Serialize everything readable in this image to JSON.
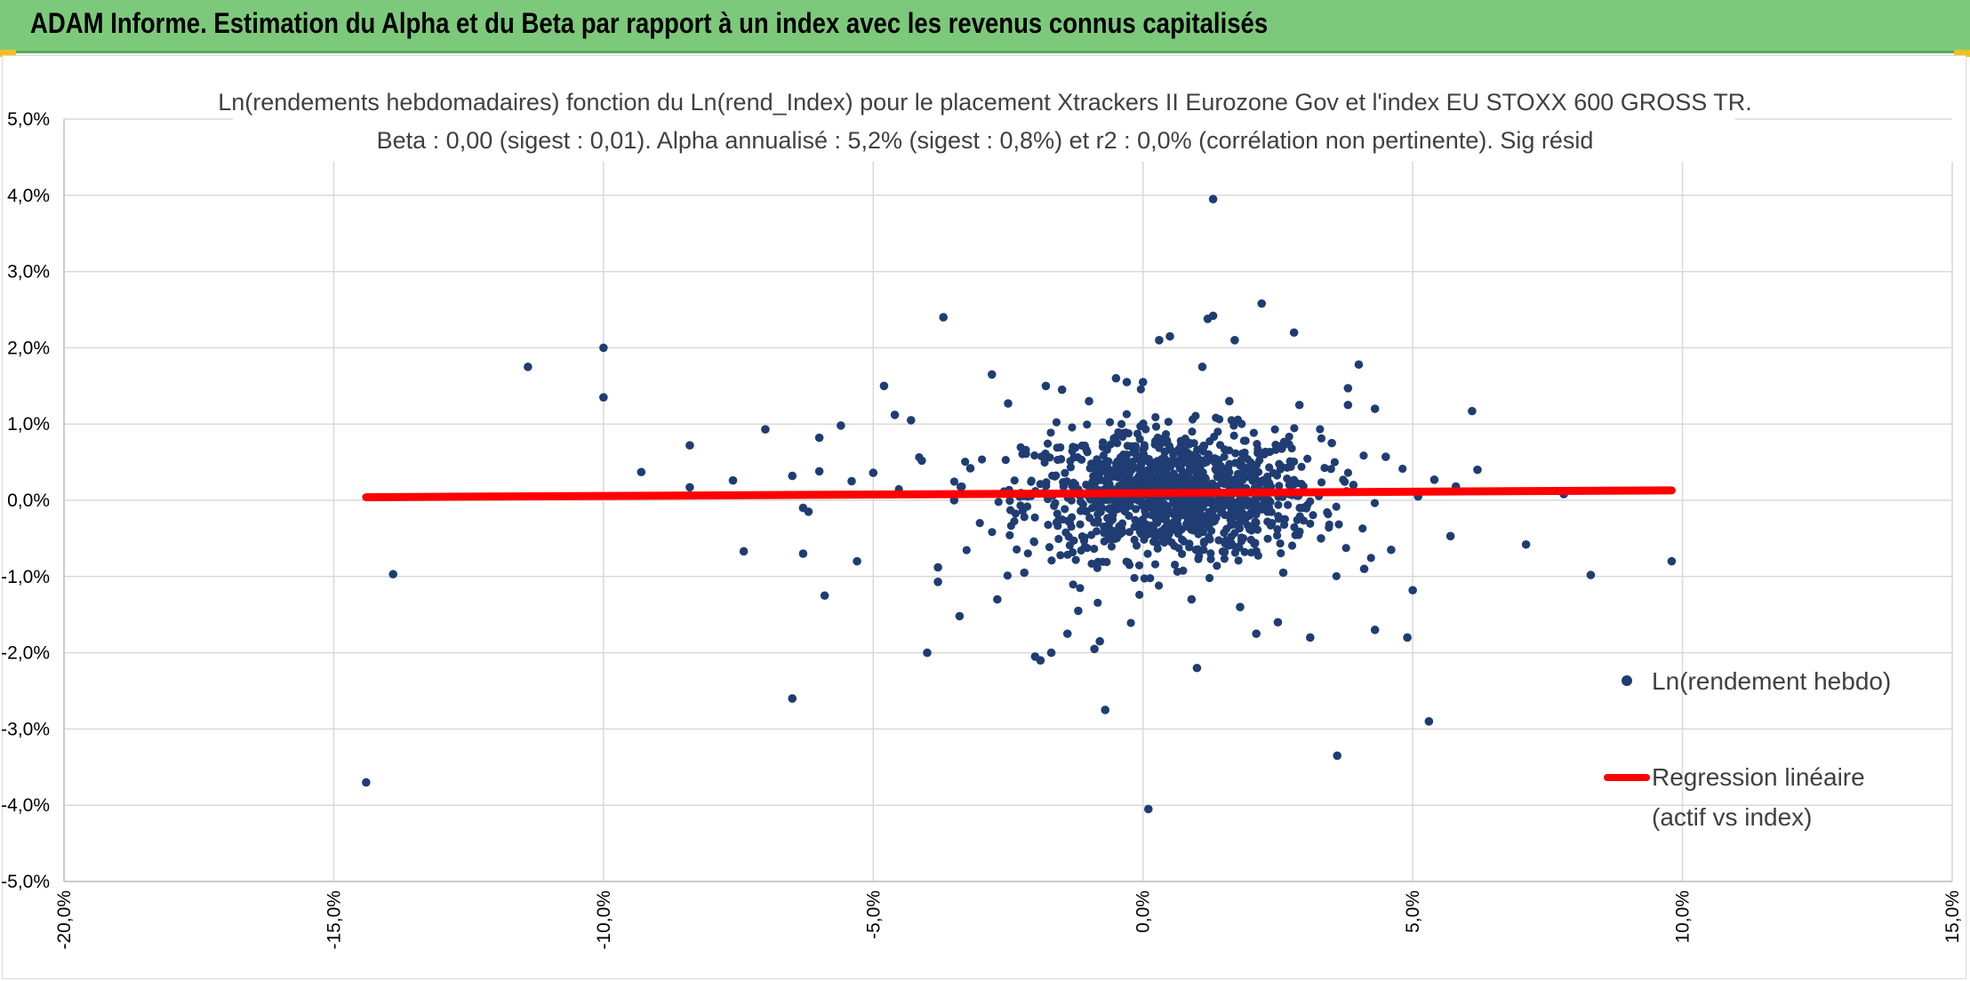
{
  "banner": {
    "title": "ADAM Informe. Estimation du Alpha et du Beta par rapport à un index avec les revenus connus capitalisés"
  },
  "colors": {
    "banner": "#7dc97b",
    "points": "#1f3d73",
    "regression": "#ff0000",
    "grid": "#d9d9d9",
    "title_text": "#404040"
  },
  "chart_data": {
    "type": "scatter",
    "title_lines": [
      "Ln(rendements hebdomadaires) fonction du Ln(rend_Index) pour le placement Xtrackers II Eurozone Gov et l'index EU STOXX 600 GROSS TR.",
      "Beta : 0,00 (sigest : 0,01). Alpha annualisé : 5,2% (sigest : 0,8%) et r2 : 0,0% (corrélation non pertinente). Sig résid"
    ],
    "xlim": [
      -20,
      15
    ],
    "ylim": [
      -5,
      5
    ],
    "x_ticks": [
      -20,
      -15,
      -10,
      -5,
      0,
      5,
      10,
      15
    ],
    "x_tick_labels": [
      "-20,0%",
      "-15,0%",
      "-10,0%",
      "-5,0%",
      "0,0%",
      "5,0%",
      "10,0%",
      "15,0%"
    ],
    "y_ticks": [
      5,
      4,
      3,
      2,
      1,
      0,
      -1,
      -2,
      -3,
      -4,
      -5
    ],
    "y_tick_labels": [
      "5,0%",
      "4,0%",
      "3,0%",
      "2,0%",
      "1,0%",
      "0,0%",
      "-1,0%",
      "-2,0%",
      "-3,0%",
      "-4,0%",
      "-5,0%"
    ],
    "grid": true,
    "legend_position": "right",
    "series": [
      {
        "name": "Ln(rendement hebdo)",
        "kind": "scatter",
        "cluster_note": "Dense cloud of several hundred weekly points roughly centred on (0.5%, 0.1%); outliers listed in points",
        "points": [
          [
            -14.4,
            -3.7
          ],
          [
            -13.9,
            -0.97
          ],
          [
            -11.4,
            1.75
          ],
          [
            -10.0,
            2.0
          ],
          [
            -10.0,
            1.35
          ],
          [
            -9.3,
            0.37
          ],
          [
            -8.4,
            0.72
          ],
          [
            -8.4,
            0.17
          ],
          [
            -7.6,
            0.26
          ],
          [
            -7.4,
            -0.67
          ],
          [
            -7.0,
            0.93
          ],
          [
            -6.5,
            0.32
          ],
          [
            -6.5,
            -2.6
          ],
          [
            -6.3,
            -0.1
          ],
          [
            -6.3,
            -0.7
          ],
          [
            -6.2,
            -0.15
          ],
          [
            -6.0,
            0.82
          ],
          [
            -6.0,
            0.38
          ],
          [
            -5.9,
            -1.25
          ],
          [
            -5.6,
            0.98
          ],
          [
            -5.4,
            0.25
          ],
          [
            -5.3,
            -0.8
          ],
          [
            -5.0,
            0.36
          ],
          [
            -4.8,
            1.5
          ],
          [
            -4.6,
            1.12
          ],
          [
            -4.3,
            1.05
          ],
          [
            -4.1,
            0.52
          ],
          [
            -4.0,
            -2.0
          ],
          [
            -3.8,
            -0.88
          ],
          [
            -3.8,
            -1.07
          ],
          [
            -3.7,
            2.4
          ],
          [
            -3.5,
            0.0
          ],
          [
            -3.4,
            -1.52
          ],
          [
            -3.2,
            0.42
          ],
          [
            -2.8,
            1.65
          ],
          [
            -2.7,
            -1.3
          ],
          [
            -2.5,
            1.27
          ],
          [
            -2.2,
            -0.95
          ],
          [
            -2.0,
            -2.05
          ],
          [
            -1.9,
            -2.1
          ],
          [
            -1.8,
            1.5
          ],
          [
            -1.7,
            -2.0
          ],
          [
            -1.5,
            1.45
          ],
          [
            -1.4,
            -1.75
          ],
          [
            -1.2,
            -1.45
          ],
          [
            -1.0,
            1.3
          ],
          [
            -0.9,
            -1.95
          ],
          [
            -0.8,
            -1.85
          ],
          [
            -0.7,
            -2.75
          ],
          [
            -0.5,
            1.6
          ],
          [
            -0.3,
            1.55
          ],
          [
            0.0,
            1.55
          ],
          [
            0.1,
            -4.05
          ],
          [
            0.3,
            2.1
          ],
          [
            0.5,
            2.15
          ],
          [
            0.9,
            -1.3
          ],
          [
            1.0,
            -2.2
          ],
          [
            1.1,
            1.75
          ],
          [
            1.2,
            2.38
          ],
          [
            1.3,
            2.42
          ],
          [
            1.3,
            3.95
          ],
          [
            1.6,
            1.3
          ],
          [
            1.7,
            2.1
          ],
          [
            1.8,
            -1.4
          ],
          [
            2.1,
            -1.75
          ],
          [
            2.2,
            2.58
          ],
          [
            2.5,
            -1.6
          ],
          [
            2.6,
            -0.95
          ],
          [
            2.8,
            2.2
          ],
          [
            2.9,
            1.25
          ],
          [
            3.1,
            -1.8
          ],
          [
            3.3,
            -0.5
          ],
          [
            3.5,
            0.75
          ],
          [
            3.6,
            -3.35
          ],
          [
            3.8,
            1.25
          ],
          [
            3.8,
            1.47
          ],
          [
            3.9,
            0.2
          ],
          [
            4.0,
            1.78
          ],
          [
            4.1,
            -0.9
          ],
          [
            4.3,
            -1.7
          ],
          [
            4.3,
            1.2
          ],
          [
            4.5,
            0.57
          ],
          [
            4.6,
            -0.65
          ],
          [
            4.9,
            -1.8
          ],
          [
            5.0,
            -1.18
          ],
          [
            5.1,
            0.05
          ],
          [
            5.3,
            -2.9
          ],
          [
            5.4,
            0.27
          ],
          [
            5.7,
            -0.47
          ],
          [
            5.8,
            0.18
          ],
          [
            6.1,
            1.17
          ],
          [
            6.2,
            0.4
          ],
          [
            7.1,
            -0.58
          ],
          [
            7.8,
            0.08
          ],
          [
            8.3,
            -0.98
          ],
          [
            9.8,
            -0.8
          ]
        ]
      },
      {
        "name": "Regression linéaire\n(actif vs index)",
        "legend_lines": [
          "Regression linéaire",
          "(actif vs index)"
        ],
        "kind": "line",
        "x": [
          -14.4,
          9.8
        ],
        "y": [
          0.04,
          0.13
        ]
      }
    ]
  }
}
